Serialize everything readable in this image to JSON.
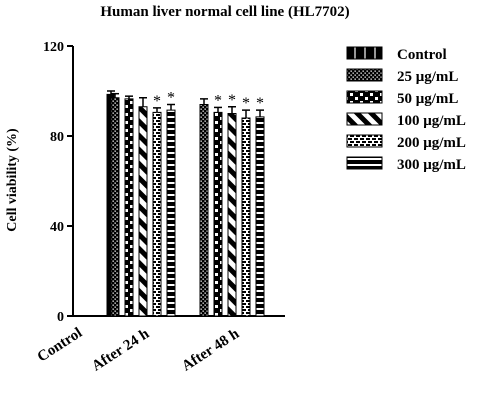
{
  "chart_data": {
    "type": "bar",
    "title": "Human liver normal cell line (HL7702)",
    "xlabel": "",
    "ylabel": "Cell viability (%)",
    "ylim": [
      0,
      120
    ],
    "yticks": [
      0,
      40,
      80,
      120
    ],
    "grid": false,
    "legend_position": "right",
    "significance_mark": "*",
    "categories": [
      "Control",
      "After 24 h",
      "After 48 h"
    ],
    "series": [
      {
        "name": "Control",
        "values": [
          98.5,
          null,
          null
        ],
        "errors": [
          1.5,
          null,
          null
        ],
        "pattern": "solid-line",
        "significant": [
          false,
          false,
          false
        ]
      },
      {
        "name": "25 μg/mL",
        "values": [
          null,
          97.0,
          94.0
        ],
        "errors": [
          null,
          1.8,
          2.5
        ],
        "pattern": "dots",
        "significant": [
          false,
          false,
          false
        ]
      },
      {
        "name": "50 μg/mL",
        "values": [
          null,
          96.5,
          90.5
        ],
        "errors": [
          null,
          1.2,
          2.2
        ],
        "pattern": "vertical-stripes",
        "significant": [
          false,
          false,
          true
        ]
      },
      {
        "name": "100 μg/mL",
        "values": [
          null,
          93.0,
          90.0
        ],
        "errors": [
          null,
          4.0,
          3.0
        ],
        "pattern": "diagonal",
        "significant": [
          false,
          false,
          true
        ]
      },
      {
        "name": "200 μg/mL",
        "values": [
          null,
          90.5,
          88.0
        ],
        "errors": [
          null,
          2.0,
          3.5
        ],
        "pattern": "bricks",
        "significant": [
          false,
          true,
          true
        ]
      },
      {
        "name": "300 μg/mL",
        "values": [
          null,
          91.5,
          88.5
        ],
        "errors": [
          null,
          2.5,
          3.0
        ],
        "pattern": "horizontal-stripes",
        "significant": [
          false,
          true,
          true
        ]
      }
    ]
  },
  "colors": {
    "ink": "#000000",
    "background": "#ffffff"
  }
}
